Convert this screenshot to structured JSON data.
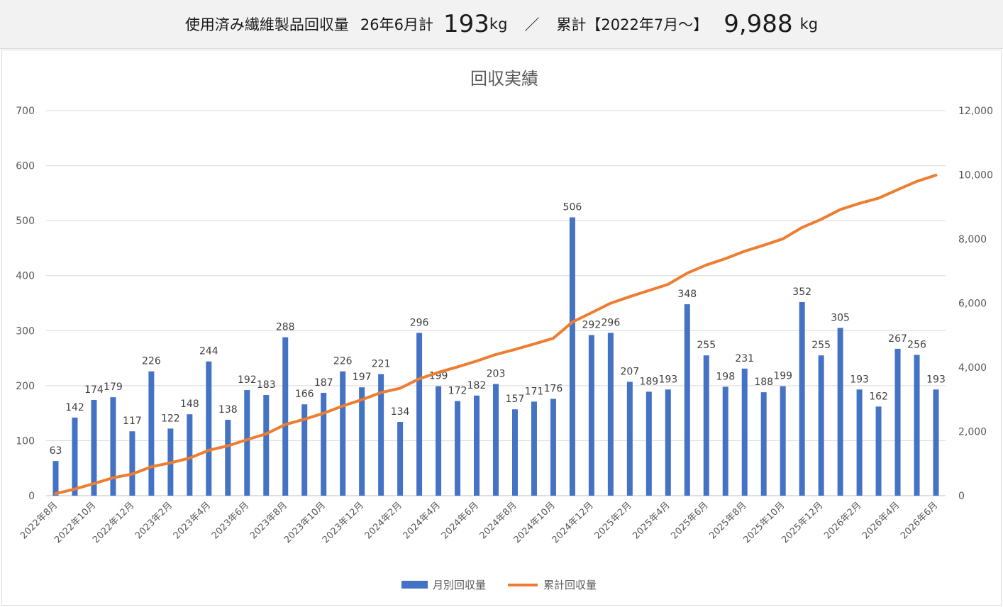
{
  "header": {
    "label1": "使用済み繊維製品回収量",
    "label2": "26年6月計",
    "monthly_value": "193",
    "unit1": "kg",
    "separator": "／",
    "label3": "累計【2022年7月～】",
    "cumulative_value": "9,988",
    "unit2": "kg"
  },
  "chart_data": {
    "type": "bar+line",
    "title": "回収実績",
    "colors": {
      "bar": "#4472c4",
      "line": "#ed7d31"
    },
    "categories": [
      "2022年8月",
      "2022年9月",
      "2022年10月",
      "2022年11月",
      "2022年12月",
      "2023年1月",
      "2023年2月",
      "2023年3月",
      "2023年4月",
      "2023年5月",
      "2023年6月",
      "2023年7月",
      "2023年8月",
      "2023年9月",
      "2023年10月",
      "2023年11月",
      "2023年12月",
      "2024年1月",
      "2024年2月",
      "2024年3月",
      "2024年4月",
      "2024年5月",
      "2024年6月",
      "2024年7月",
      "2024年8月",
      "2024年9月",
      "2024年10月",
      "2024年11月",
      "2024年12月",
      "2025年1月",
      "2025年2月",
      "2025年3月",
      "2025年4月",
      "2025年5月",
      "2025年6月",
      "2025年7月",
      "2025年8月",
      "2025年9月",
      "2025年10月",
      "2025年11月",
      "2025年12月",
      "2026年1月",
      "2026年2月",
      "2026年3月",
      "2026年4月",
      "2026年5月",
      "2026年6月"
    ],
    "x_tick_labels": [
      "2022年8月",
      "2022年10月",
      "2022年12月",
      "2023年2月",
      "2023年4月",
      "2023年6月",
      "2023年8月",
      "2023年10月",
      "2023年12月",
      "2024年2月",
      "2024年4月",
      "2024年6月",
      "2024年8月",
      "2024年10月",
      "2024年12月",
      "2025年2月",
      "2025年4月",
      "2025年6月",
      "2025年8月",
      "2025年10月",
      "2025年12月",
      "2026年2月",
      "2026年4月",
      "2026年6月"
    ],
    "series": [
      {
        "name": "月別回収量",
        "type": "bar",
        "axis": "left",
        "values": [
          63,
          142,
          174,
          179,
          117,
          226,
          122,
          148,
          244,
          138,
          192,
          183,
          288,
          166,
          187,
          226,
          197,
          221,
          134,
          296,
          199,
          172,
          182,
          203,
          157,
          171,
          176,
          506,
          292,
          296,
          207,
          189,
          193,
          348,
          255,
          198,
          231,
          188,
          199,
          352,
          255,
          305,
          193,
          162,
          267,
          256,
          193
        ]
      },
      {
        "name": "累計回収量",
        "type": "line",
        "axis": "right",
        "values": [
          63,
          205,
          379,
          558,
          675,
          901,
          1023,
          1171,
          1415,
          1553,
          1745,
          1928,
          2216,
          2382,
          2569,
          2795,
          2992,
          3213,
          3347,
          3643,
          3842,
          4014,
          4196,
          4399,
          4556,
          4727,
          4903,
          5409,
          5701,
          5997,
          6204,
          6393,
          6586,
          6934,
          7189,
          7387,
          7618,
          7806,
          8005,
          8357,
          8612,
          8917,
          9110,
          9272,
          9539,
          9795,
          9988
        ]
      }
    ],
    "y_left": {
      "min": 0,
      "max": 700,
      "ticks": [
        "0",
        "100",
        "200",
        "300",
        "400",
        "500",
        "600",
        "700"
      ]
    },
    "y_right": {
      "min": 0,
      "max": 12000,
      "ticks": [
        "0",
        "2,000",
        "4,000",
        "6,000",
        "8,000",
        "10,000",
        "12,000"
      ]
    },
    "grid": true,
    "legend_position": "bottom"
  }
}
